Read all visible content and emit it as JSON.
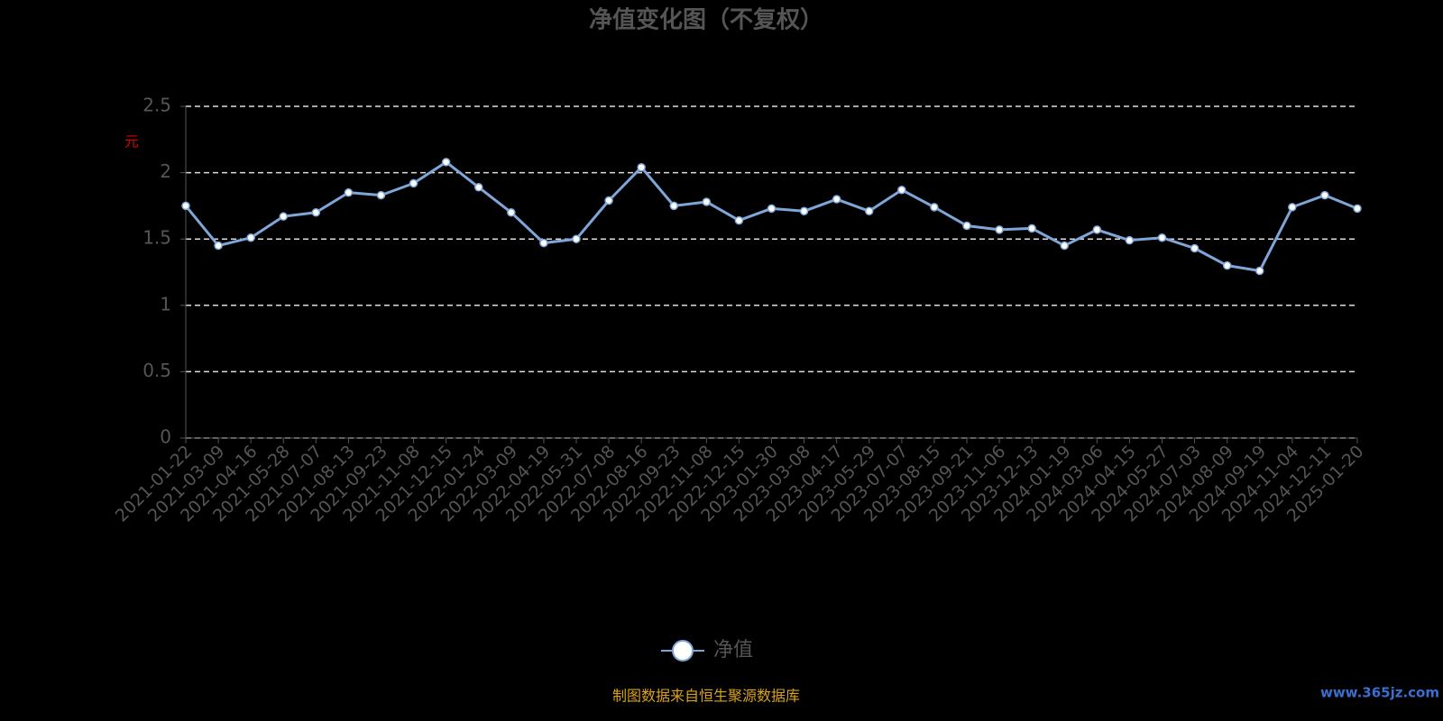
{
  "chart_data": {
    "type": "line",
    "title": "净值变化图（不复权）",
    "y_label": "元",
    "x": [
      "2021-01-22",
      "2021-03-09",
      "2021-04-16",
      "2021-05-28",
      "2021-07-07",
      "2021-08-13",
      "2021-09-23",
      "2021-11-08",
      "2021-12-15",
      "2022-01-24",
      "2022-03-09",
      "2022-04-19",
      "2022-05-31",
      "2022-07-08",
      "2022-08-16",
      "2022-09-23",
      "2022-11-08",
      "2022-12-15",
      "2023-01-30",
      "2023-03-08",
      "2023-04-17",
      "2023-05-29",
      "2023-07-07",
      "2023-08-15",
      "2023-09-21",
      "2023-11-06",
      "2023-12-13",
      "2024-01-19",
      "2024-03-06",
      "2024-04-15",
      "2024-05-27",
      "2024-07-03",
      "2024-08-09",
      "2024-09-19",
      "2024-11-04",
      "2024-12-11",
      "2025-01-20"
    ],
    "series": [
      {
        "name": "净值",
        "color": "#7fa6d8",
        "values": [
          1.75,
          1.45,
          1.51,
          1.67,
          1.7,
          1.85,
          1.83,
          1.92,
          2.08,
          1.89,
          1.7,
          1.47,
          1.5,
          1.79,
          2.04,
          1.75,
          1.78,
          1.64,
          1.73,
          1.71,
          1.8,
          1.71,
          1.87,
          1.74,
          1.6,
          1.57,
          1.58,
          1.45,
          1.57,
          1.49,
          1.51,
          1.43,
          1.3,
          1.26,
          1.74,
          1.83,
          1.73
        ]
      }
    ],
    "ylim": [
      0,
      2.5
    ],
    "yticks": [
      0,
      0.5,
      1,
      1.5,
      2,
      2.5
    ],
    "grid": true,
    "source_note": "制图数据来自恒生聚源数据库",
    "watermark": "www.365jz.com"
  }
}
